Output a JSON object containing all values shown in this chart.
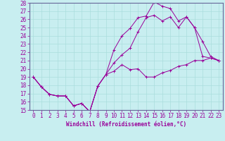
{
  "xlabel": "Windchill (Refroidissement éolien,°C)",
  "bg_color": "#c8eef0",
  "line_color": "#990099",
  "grid_color": "#aadddd",
  "spine_color": "#666699",
  "xlim": [
    -0.5,
    23.5
  ],
  "ylim": [
    15,
    28
  ],
  "xticks": [
    0,
    1,
    2,
    3,
    4,
    5,
    6,
    7,
    8,
    9,
    10,
    11,
    12,
    13,
    14,
    15,
    16,
    17,
    18,
    19,
    20,
    21,
    22,
    23
  ],
  "yticks": [
    15,
    16,
    17,
    18,
    19,
    20,
    21,
    22,
    23,
    24,
    25,
    26,
    27,
    28
  ],
  "line1_x": [
    0,
    1,
    2,
    3,
    4,
    5,
    6,
    7,
    8,
    9,
    10,
    11,
    12,
    13,
    14,
    15,
    16,
    17,
    18,
    19,
    20,
    21,
    22,
    23
  ],
  "line1_y": [
    19.0,
    17.8,
    16.9,
    16.7,
    16.7,
    15.5,
    15.8,
    14.8,
    17.9,
    19.3,
    19.7,
    20.5,
    19.9,
    20.0,
    19.0,
    19.0,
    19.5,
    19.8,
    20.3,
    20.5,
    21.0,
    21.0,
    21.3,
    21.0
  ],
  "line2_x": [
    0,
    1,
    2,
    3,
    4,
    5,
    6,
    7,
    8,
    9,
    10,
    11,
    12,
    13,
    14,
    15,
    16,
    17,
    18,
    19,
    20,
    21,
    22,
    23
  ],
  "line2_y": [
    19.0,
    17.8,
    16.9,
    16.7,
    16.7,
    15.5,
    15.8,
    14.8,
    17.9,
    19.3,
    22.3,
    24.0,
    24.9,
    26.2,
    26.4,
    28.1,
    27.6,
    27.3,
    25.8,
    26.3,
    25.0,
    23.3,
    21.5,
    21.0
  ],
  "line3_x": [
    0,
    1,
    2,
    3,
    4,
    5,
    6,
    7,
    8,
    9,
    10,
    11,
    12,
    13,
    14,
    15,
    16,
    17,
    18,
    19,
    20,
    21,
    22,
    23
  ],
  "line3_y": [
    19.0,
    17.8,
    16.9,
    16.7,
    16.7,
    15.5,
    15.8,
    14.8,
    17.9,
    19.3,
    20.7,
    21.7,
    22.5,
    24.5,
    26.2,
    26.5,
    25.8,
    26.3,
    25.0,
    26.3,
    25.0,
    21.5,
    21.3,
    21.0
  ],
  "tick_fontsize": 5.5,
  "xlabel_fontsize": 5.5
}
